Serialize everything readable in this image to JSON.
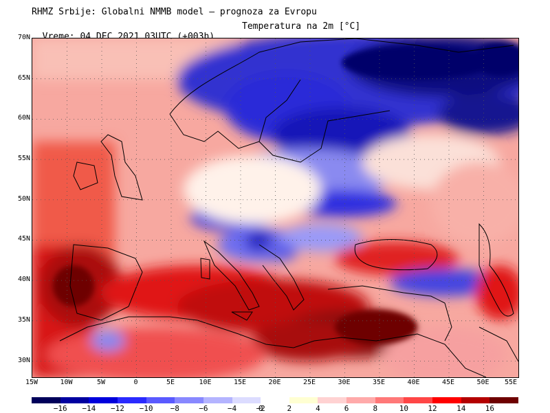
{
  "header": {
    "title_line1": "RHMZ Srbije: Globalni NMMB model — prognoza za Evropu",
    "title_line2_time": "Vreme: 04 DEC 2021 03UTC (+003h)",
    "title_line2_param": "Temperatura na 2m [°C]"
  },
  "map": {
    "lat_labels": [
      "70N",
      "65N",
      "60N",
      "55N",
      "50N",
      "45N",
      "40N",
      "35N",
      "30N"
    ],
    "lon_labels": [
      "15W",
      "10W",
      "5W",
      "0",
      "5E",
      "10E",
      "15E",
      "20E",
      "25E",
      "30E",
      "35E",
      "40E",
      "45E",
      "50E",
      "55E"
    ],
    "extent": {
      "lon_min": -15,
      "lon_max": 55,
      "lat_min": 28,
      "lat_max": 70
    }
  },
  "legend": {
    "labels": [
      "−16",
      "−14",
      "−12",
      "−10",
      "−8",
      "−6",
      "−4",
      "−2",
      "0",
      "2",
      "4",
      "6",
      "8",
      "10",
      "12",
      "14",
      "16"
    ],
    "colors": [
      "#00005a",
      "#0000a0",
      "#0000dc",
      "#2a2aff",
      "#5a5aff",
      "#8888ff",
      "#b4b4ff",
      "#dcdcff",
      "#ffffff",
      "#ffffd2",
      "#ffd2d2",
      "#ffaaaa",
      "#ff7878",
      "#ff4646",
      "#ff0000",
      "#b40000",
      "#6e0000"
    ]
  }
}
